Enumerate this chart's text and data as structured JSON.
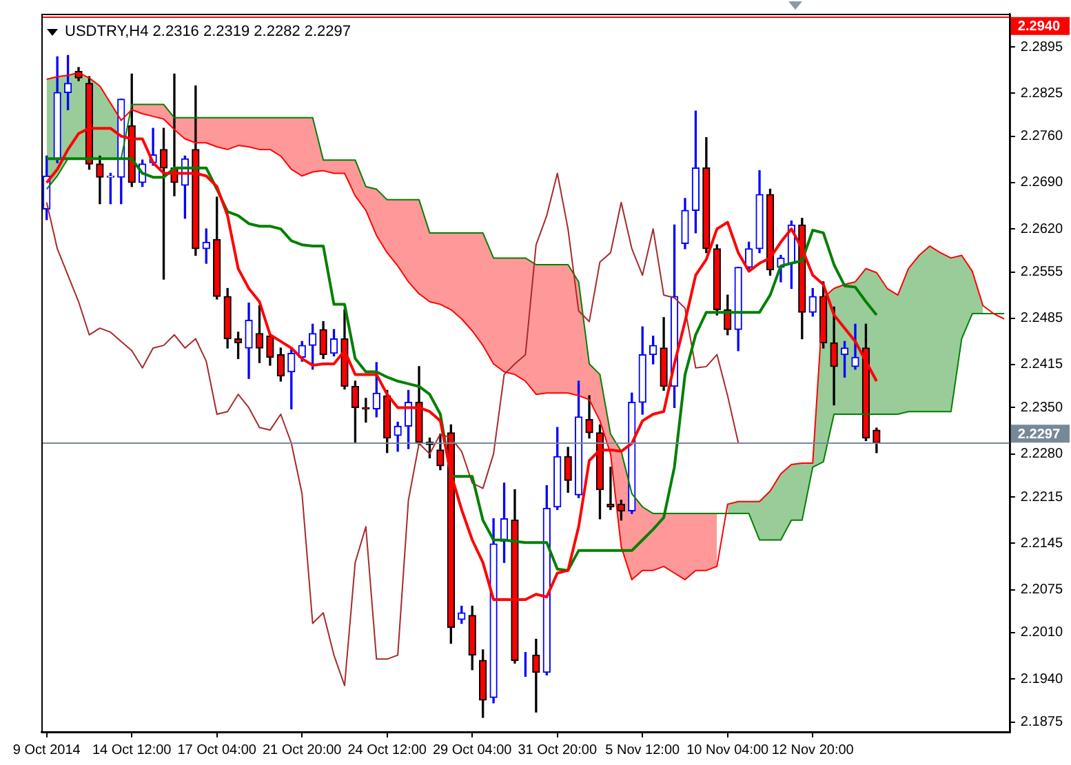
{
  "chart_data": {
    "type": "candlestick",
    "title": "USDTRY,H4 2.2316 2.2319 2.2282 2.2297",
    "categories": [
      "9 Oct 2014",
      null,
      null,
      null,
      null,
      null,
      null,
      null,
      "14 Oct 12:00",
      null,
      null,
      null,
      null,
      null,
      null,
      null,
      "17 Oct 04:00",
      null,
      null,
      null,
      null,
      null,
      null,
      null,
      "21 Oct 20:00",
      null,
      null,
      null,
      null,
      null,
      null,
      null,
      "24 Oct 12:00",
      null,
      null,
      null,
      null,
      null,
      null,
      null,
      "29 Oct 04:00",
      null,
      null,
      null,
      null,
      null,
      null,
      null,
      "31 Oct 20:00",
      null,
      null,
      null,
      null,
      null,
      null,
      null,
      "5 Nov 12:00",
      null,
      null,
      null,
      null,
      null,
      null,
      null,
      "10 Nov 04:00",
      null,
      null,
      null,
      null,
      null,
      null,
      null,
      "12 Nov 20:00",
      null,
      null,
      null,
      null,
      null,
      null,
      null,
      null,
      null,
      null,
      null,
      null,
      null,
      null,
      null,
      null,
      null,
      null
    ],
    "ohlc": [
      [
        2.265,
        2.273,
        2.2634,
        2.27
      ],
      [
        2.2726,
        2.288,
        2.272,
        2.2826
      ],
      [
        2.2826,
        2.2882,
        2.28,
        2.284
      ],
      [
        2.2858,
        2.2864,
        2.2844,
        2.2848
      ],
      [
        2.284,
        2.285,
        2.271,
        2.2718
      ],
      [
        2.2718,
        2.273,
        2.2658,
        2.2698
      ],
      [
        2.2698,
        2.2704,
        2.2658,
        2.27
      ],
      [
        2.2698,
        2.2816,
        2.2658,
        2.2816
      ],
      [
        2.2776,
        2.2854,
        2.2684,
        2.269
      ],
      [
        2.269,
        2.2724,
        2.2684,
        2.2718
      ],
      [
        2.272,
        2.2772,
        2.2716,
        2.2732
      ],
      [
        2.274,
        2.2772,
        2.2544,
        2.2712
      ],
      [
        2.2712,
        2.2854,
        2.267,
        2.269
      ],
      [
        2.2686,
        2.273,
        2.2636,
        2.2726
      ],
      [
        2.274,
        2.2836,
        2.258,
        2.259
      ],
      [
        2.259,
        2.262,
        2.2568,
        2.26
      ],
      [
        2.2604,
        2.2668,
        2.2514,
        2.2518
      ],
      [
        2.2518,
        2.253,
        2.244,
        2.2454
      ],
      [
        2.2454,
        2.2464,
        2.2424,
        2.2448
      ],
      [
        2.244,
        2.2508,
        2.2394,
        2.2482
      ],
      [
        2.2462,
        2.2504,
        2.2418,
        2.244
      ],
      [
        2.2458,
        2.246,
        2.2414,
        2.2426
      ],
      [
        2.243,
        2.244,
        2.239,
        2.2398
      ],
      [
        2.2404,
        2.244,
        2.2348,
        2.2432
      ],
      [
        2.2426,
        2.245,
        2.242,
        2.2444
      ],
      [
        2.2444,
        2.2476,
        2.2408,
        2.2462
      ],
      [
        2.2468,
        2.248,
        2.2424,
        2.243
      ],
      [
        2.2432,
        2.2468,
        2.2428,
        2.2454
      ],
      [
        2.2454,
        2.2498,
        2.2378,
        2.2382
      ],
      [
        2.2382,
        2.239,
        2.2298,
        2.235
      ],
      [
        2.235,
        2.2364,
        2.2328,
        2.2348
      ],
      [
        2.2348,
        2.2418,
        2.2336,
        2.2372
      ],
      [
        2.2368,
        2.2376,
        2.2282,
        2.2304
      ],
      [
        2.2308,
        2.2328,
        2.2284,
        2.2322
      ],
      [
        2.2322,
        2.2376,
        2.2288,
        2.2358
      ],
      [
        2.2358,
        2.2412,
        2.2294,
        2.2298
      ],
      [
        2.2298,
        2.2304,
        2.2274,
        2.2294
      ],
      [
        2.2286,
        2.231,
        2.2256,
        2.2262
      ],
      [
        2.2312,
        2.2324,
        2.1994,
        2.2018
      ],
      [
        2.203,
        2.205,
        2.2024,
        2.204
      ],
      [
        2.2036,
        2.205,
        2.1954,
        2.1976
      ],
      [
        2.1968,
        2.1984,
        2.1882,
        2.1908
      ],
      [
        2.1912,
        2.2182,
        2.1904,
        2.2144
      ],
      [
        2.2148,
        2.2236,
        2.2116,
        2.2182
      ],
      [
        2.218,
        2.2226,
        2.1964,
        2.1968
      ],
      [
        2.1972,
        2.198,
        2.1944,
        2.1972
      ],
      [
        2.1976,
        2.2,
        2.189,
        2.195
      ],
      [
        2.195,
        2.2232,
        2.1946,
        2.2198
      ],
      [
        2.22,
        2.232,
        2.2196,
        2.2276
      ],
      [
        2.2276,
        2.229,
        2.2222,
        2.224
      ],
      [
        2.2218,
        2.239,
        2.2214,
        2.2336
      ],
      [
        2.2332,
        2.2368,
        2.2304,
        2.2312
      ],
      [
        2.2312,
        2.2324,
        2.2182,
        2.2226
      ],
      [
        2.2204,
        2.226,
        2.2196,
        2.22
      ],
      [
        2.2204,
        2.221,
        2.218,
        2.2194
      ],
      [
        2.2194,
        2.2372,
        2.219,
        2.2358
      ],
      [
        2.2358,
        2.2472,
        2.234,
        2.243
      ],
      [
        2.243,
        2.2458,
        2.2416,
        2.2444
      ],
      [
        2.244,
        2.2486,
        2.2376,
        2.2382
      ],
      [
        2.2382,
        2.2626,
        2.235,
        2.2518
      ],
      [
        2.2598,
        2.2666,
        2.259,
        2.2648
      ],
      [
        2.2648,
        2.2798,
        2.2614,
        2.2712
      ],
      [
        2.2712,
        2.2758,
        2.2584,
        2.259
      ],
      [
        2.259,
        2.2596,
        2.249,
        2.2498
      ],
      [
        2.2498,
        2.252,
        2.246,
        2.2468
      ],
      [
        2.2468,
        2.2562,
        2.2436,
        2.2562
      ],
      [
        2.2562,
        2.26,
        2.2556,
        2.259
      ],
      [
        2.259,
        2.2708,
        2.2584,
        2.2672
      ],
      [
        2.2672,
        2.268,
        2.255,
        2.2558
      ],
      [
        2.2562,
        2.258,
        2.254,
        2.2576
      ],
      [
        2.2568,
        2.2632,
        2.253,
        2.2626
      ],
      [
        2.2626,
        2.2636,
        2.2454,
        2.2494
      ],
      [
        2.2494,
        2.253,
        2.2488,
        2.2518
      ],
      [
        2.2518,
        2.254,
        2.244,
        2.2448
      ],
      [
        2.2448,
        2.2502,
        2.2354,
        2.2412
      ],
      [
        2.243,
        2.245,
        2.2396,
        2.244
      ],
      [
        2.2412,
        2.2476,
        2.2408,
        2.2426
      ],
      [
        2.244,
        2.2476,
        2.23,
        2.2304
      ],
      [
        2.2316,
        2.2319,
        2.2282,
        2.2297
      ],
      null,
      null,
      null,
      null,
      null,
      null,
      null,
      null,
      null,
      null,
      null,
      null
    ],
    "series": [
      {
        "type": "line",
        "color": "#ff0000",
        "values": [
          2.269,
          2.271,
          2.274,
          2.2764,
          2.2772,
          2.2772,
          2.2772,
          2.276,
          2.2756,
          2.2756,
          2.272,
          2.2704,
          2.2704,
          2.2704,
          2.2704,
          2.27,
          2.2684,
          2.264,
          2.256,
          2.253,
          2.251,
          2.246,
          2.245,
          2.244,
          2.2424,
          2.2414,
          2.2416,
          2.2416,
          2.2436,
          2.24,
          2.24,
          2.24,
          2.237,
          2.235,
          2.235,
          2.235,
          2.2344,
          2.233,
          2.225,
          2.2196,
          2.215,
          2.2116,
          2.206,
          2.206,
          2.206,
          2.206,
          2.2068,
          2.2064,
          2.21,
          2.2104,
          2.217,
          2.227,
          2.2286,
          2.2286,
          2.2284,
          2.2296,
          2.233,
          2.234,
          2.2344,
          2.2416,
          2.248,
          2.255,
          2.2574,
          2.262,
          2.263,
          2.2584,
          2.2556,
          2.2568,
          2.2576,
          2.26,
          2.262,
          2.259,
          2.255,
          2.2536,
          2.249,
          2.247,
          2.245,
          2.242,
          2.239,
          null,
          null,
          null,
          null,
          null,
          null,
          null,
          null,
          null,
          null,
          null,
          null
        ]
      },
      {
        "type": "line",
        "color": "#008000",
        "values": [
          2.2726,
          2.2726,
          2.2726,
          2.2726,
          2.2726,
          2.2726,
          2.2726,
          2.2726,
          2.2726,
          2.2704,
          2.2698,
          2.2698,
          2.2712,
          2.2712,
          2.2712,
          2.2712,
          2.268,
          2.2646,
          2.264,
          2.2628,
          2.2624,
          2.2624,
          2.262,
          2.2602,
          2.2596,
          2.2594,
          2.2594,
          2.2506,
          2.2506,
          2.2424,
          2.2404,
          2.2404,
          2.2396,
          2.239,
          2.2386,
          2.2382,
          2.237,
          2.234,
          2.2246,
          2.2246,
          2.2246,
          2.218,
          2.215,
          2.215,
          2.2148,
          2.2146,
          2.2146,
          2.2146,
          2.2106,
          2.2104,
          2.2134,
          2.2134,
          2.2134,
          2.2134,
          2.2134,
          2.2134,
          2.215,
          2.2166,
          2.2184,
          2.226,
          2.24,
          2.246,
          2.2494,
          2.2494,
          2.2494,
          2.2494,
          2.2494,
          2.2494,
          2.252,
          2.2564,
          2.2568,
          2.2572,
          2.2618,
          2.2614,
          2.2566,
          2.2534,
          2.2532,
          2.251,
          2.249,
          null,
          null,
          null,
          null,
          null,
          null,
          null,
          null,
          null,
          null,
          null,
          null
        ]
      },
      {
        "type": "line",
        "color": "#a52a2a",
        "values": [
          2.266,
          2.259,
          2.255,
          2.251,
          2.246,
          2.247,
          2.2464,
          2.245,
          2.2436,
          2.241,
          2.244,
          2.2444,
          2.246,
          2.244,
          2.2454,
          2.242,
          2.234,
          2.2344,
          2.237,
          2.235,
          2.232,
          2.2316,
          2.234,
          2.2296,
          2.222,
          2.2024,
          2.204,
          2.1976,
          2.193,
          2.2116,
          2.217,
          2.197,
          2.197,
          2.1976,
          2.221,
          2.2296,
          2.228,
          2.231,
          2.2304,
          2.2284,
          2.2236,
          2.2228,
          2.228,
          2.24,
          2.2416,
          2.243,
          2.2596,
          2.264,
          2.2704,
          2.262,
          2.2496,
          2.248,
          2.257,
          2.2584,
          2.266,
          2.259,
          2.255,
          2.262,
          2.252,
          2.2516,
          2.25,
          2.241,
          2.2412,
          2.243,
          2.2368,
          2.2297,
          null,
          null,
          null,
          null,
          null,
          null,
          null,
          null,
          null,
          null,
          null,
          null,
          null,
          null,
          null,
          null,
          null,
          null,
          null,
          null,
          null,
          null,
          null,
          null,
          null
        ]
      },
      {
        "type": "line",
        "color": "#ff0000",
        "values": [
          2.2846,
          2.285,
          2.2852,
          2.2856,
          2.2848,
          2.2836,
          2.281,
          2.2784,
          2.28,
          2.2794,
          2.279,
          2.2786,
          2.277,
          2.2756,
          2.275,
          2.275,
          2.2744,
          2.274,
          2.2746,
          2.2744,
          2.274,
          2.274,
          2.273,
          2.271,
          2.27,
          2.2706,
          2.2708,
          2.2704,
          2.2704,
          2.267,
          2.2648,
          2.261,
          2.2584,
          2.2564,
          2.254,
          2.2522,
          2.251,
          2.2506,
          2.2498,
          2.2484,
          2.2466,
          2.2444,
          2.2416,
          2.2404,
          2.24,
          2.239,
          2.237,
          2.2372,
          2.2372,
          2.2372,
          2.2368,
          2.2362,
          2.233,
          2.228,
          2.214,
          2.209,
          2.2104,
          2.2104,
          2.211,
          2.21,
          2.209,
          2.2104,
          2.2104,
          2.211,
          2.2204,
          2.2208,
          2.2208,
          2.2208,
          2.2224,
          2.225,
          2.2264,
          2.2266,
          2.2266,
          2.2516,
          2.253,
          2.2536,
          2.254,
          2.256,
          2.2554,
          2.253,
          2.252,
          2.256,
          2.258,
          2.2594,
          2.2584,
          2.2576,
          2.258,
          2.2556,
          2.2504,
          2.2492,
          2.2484
        ],
        "lower": [
          null,
          null,
          null,
          null,
          null,
          null,
          null,
          null,
          2.28,
          2.2794,
          2.279,
          2.2786,
          2.277,
          2.2756,
          2.275,
          2.275,
          2.2744,
          2.274,
          2.2746,
          2.2744,
          2.274,
          2.274,
          2.273,
          2.271,
          2.27,
          2.2706,
          2.2708,
          2.2704,
          2.2704,
          2.267,
          2.2648,
          2.261,
          2.2584,
          2.2564,
          2.254,
          2.2522,
          2.251,
          2.2506,
          2.2498,
          2.2484,
          2.2466,
          2.2444,
          2.2416,
          2.2404,
          2.24,
          2.239,
          2.237,
          2.2372,
          2.2372,
          2.2372,
          2.2368,
          2.2362,
          2.233,
          2.228,
          2.214,
          2.209,
          2.2104,
          2.2104,
          2.211,
          2.21,
          2.209,
          2.2104,
          2.2104,
          2.211,
          null,
          null,
          null,
          null,
          null,
          null,
          null,
          null,
          null,
          null,
          null,
          null,
          null,
          null,
          null,
          null,
          null,
          null,
          null,
          null,
          null,
          null,
          null,
          null,
          null,
          null,
          null
        ],
        "upper": [
          null,
          null,
          null,
          null,
          null,
          null,
          null,
          null,
          2.2808,
          2.2808,
          2.2808,
          2.2808,
          2.2788,
          2.2788,
          2.2788,
          2.2788,
          2.2788,
          2.2788,
          2.2788,
          2.2788,
          2.2788,
          2.2788,
          2.2788,
          2.2788,
          2.2788,
          2.2788,
          2.2724,
          2.2724,
          2.2724,
          2.2724,
          2.2684,
          2.268,
          2.2664,
          2.2664,
          2.2664,
          2.2664,
          2.2614,
          2.2614,
          2.2614,
          2.2614,
          2.2614,
          2.2614,
          2.2576,
          2.2576,
          2.2576,
          2.2576,
          2.2566,
          2.2566,
          2.2566,
          2.2566,
          2.254,
          2.2416,
          2.24,
          2.231,
          2.2284,
          2.222,
          2.22,
          2.219,
          2.219,
          2.219,
          2.219,
          2.219,
          2.219,
          2.219,
          null,
          null,
          null,
          null,
          null,
          null,
          null,
          null,
          null,
          null,
          null,
          null,
          null,
          null,
          null,
          null,
          null,
          null,
          null,
          null,
          null,
          null,
          null,
          null,
          null,
          null,
          null
        ]
      },
      {
        "type": "line",
        "color": "#008000",
        "values": [
          2.268,
          2.27,
          2.2726,
          2.2726,
          2.2726,
          2.2726,
          2.2726,
          2.2726,
          2.2808,
          2.2808,
          2.2808,
          2.2808,
          2.2788,
          2.2788,
          2.2788,
          2.2788,
          2.2788,
          2.2788,
          2.2788,
          2.2788,
          2.2788,
          2.2788,
          2.2788,
          2.2788,
          2.2788,
          2.2788,
          2.2724,
          2.2724,
          2.2724,
          2.2724,
          2.2684,
          2.268,
          2.2664,
          2.2664,
          2.2664,
          2.2664,
          2.2614,
          2.2614,
          2.2614,
          2.2614,
          2.2614,
          2.2614,
          2.2576,
          2.2576,
          2.2576,
          2.2576,
          2.2566,
          2.2566,
          2.2566,
          2.2566,
          2.254,
          2.2416,
          2.24,
          2.231,
          2.2284,
          2.222,
          2.22,
          2.219,
          2.219,
          2.219,
          2.219,
          2.219,
          2.219,
          2.219,
          2.219,
          2.219,
          2.219,
          2.215,
          2.215,
          2.215,
          2.218,
          2.218,
          2.226,
          2.2268,
          2.234,
          2.234,
          2.234,
          2.234,
          2.234,
          2.234,
          2.234,
          2.2344,
          2.2344,
          2.2344,
          2.2344,
          2.2344,
          2.2454,
          2.2492,
          2.2492,
          2.2492,
          2.2492
        ],
        "lower": [
          2.268,
          2.27,
          2.2726,
          2.2726,
          2.2726,
          2.2726,
          2.2726,
          2.2726,
          null,
          null,
          null,
          null,
          null,
          null,
          null,
          null,
          null,
          null,
          null,
          null,
          null,
          null,
          null,
          null,
          null,
          null,
          null,
          null,
          null,
          null,
          null,
          null,
          null,
          null,
          null,
          null,
          null,
          null,
          null,
          null,
          null,
          null,
          null,
          null,
          null,
          null,
          null,
          null,
          null,
          null,
          null,
          null,
          null,
          null,
          null,
          null,
          null,
          null,
          null,
          null,
          null,
          null,
          null,
          null,
          2.219,
          2.219,
          2.219,
          2.215,
          2.215,
          2.215,
          2.218,
          2.218,
          2.226,
          2.2268,
          2.234,
          2.234,
          2.234,
          2.234,
          2.234,
          2.234,
          2.234,
          2.2344,
          2.2344,
          2.2344,
          2.2344,
          2.2344,
          2.2454,
          2.2492,
          2.2492,
          null,
          null
        ],
        "upper": [
          2.2846,
          2.285,
          2.2852,
          2.2856,
          2.2848,
          2.2836,
          2.281,
          2.2784,
          null,
          null,
          null,
          null,
          null,
          null,
          null,
          null,
          null,
          null,
          null,
          null,
          null,
          null,
          null,
          null,
          null,
          null,
          null,
          null,
          null,
          null,
          null,
          null,
          null,
          null,
          null,
          null,
          null,
          null,
          null,
          null,
          null,
          null,
          null,
          null,
          null,
          null,
          null,
          null,
          null,
          null,
          null,
          null,
          null,
          null,
          null,
          null,
          null,
          null,
          null,
          null,
          null,
          null,
          null,
          null,
          2.2204,
          2.2208,
          2.2208,
          2.2208,
          2.2224,
          2.225,
          2.2264,
          2.2266,
          2.2266,
          2.2516,
          2.253,
          2.2536,
          2.254,
          2.256,
          2.2554,
          2.253,
          2.252,
          2.256,
          2.258,
          2.2594,
          2.2584,
          2.2576,
          2.258,
          2.2556,
          2.2504,
          null,
          null
        ]
      }
    ],
    "ylim": [
      2.186,
      2.2945
    ],
    "yticks": [
      2.2895,
      2.2825,
      {
        "value": 2.276,
        "label": "2.2760"
      },
      {
        "value": 2.269,
        "label": "2.2690"
      },
      {
        "value": 2.262,
        "label": "2.2620"
      },
      2.2555,
      2.2485,
      2.2415,
      {
        "value": 2.235,
        "label": "2.2350"
      },
      {
        "value": 2.228,
        "label": "2.2280"
      },
      2.2215,
      2.2145,
      2.2075,
      {
        "value": 2.201,
        "label": "2.2010"
      },
      {
        "value": 2.194,
        "label": "2.1940"
      },
      2.1875
    ],
    "ref_lines": [
      {
        "axis": "y",
        "value": 2.2297,
        "label": "2.2297",
        "color": "#778899"
      },
      {
        "axis": "y",
        "value": 2.294,
        "label": "2.2940",
        "color": "#ff0000"
      }
    ],
    "grid": false,
    "legend": false,
    "marker": "none"
  }
}
